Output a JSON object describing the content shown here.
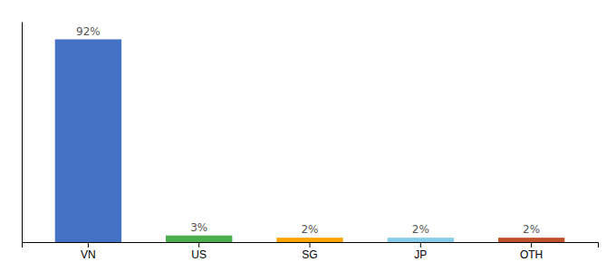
{
  "chart_data": {
    "type": "bar",
    "categories": [
      "VN",
      "US",
      "SG",
      "JP",
      "OTH"
    ],
    "values": [
      92,
      3,
      2,
      2,
      2
    ],
    "value_labels": [
      "92%",
      "3%",
      "2%",
      "2%",
      "2%"
    ],
    "colors": [
      "#4472c4",
      "#4caf50",
      "#ffa500",
      "#87ceeb",
      "#c0522a"
    ],
    "ylim": [
      0,
      100
    ],
    "data_labels": true,
    "tick_labels": "x",
    "grid": false
  }
}
